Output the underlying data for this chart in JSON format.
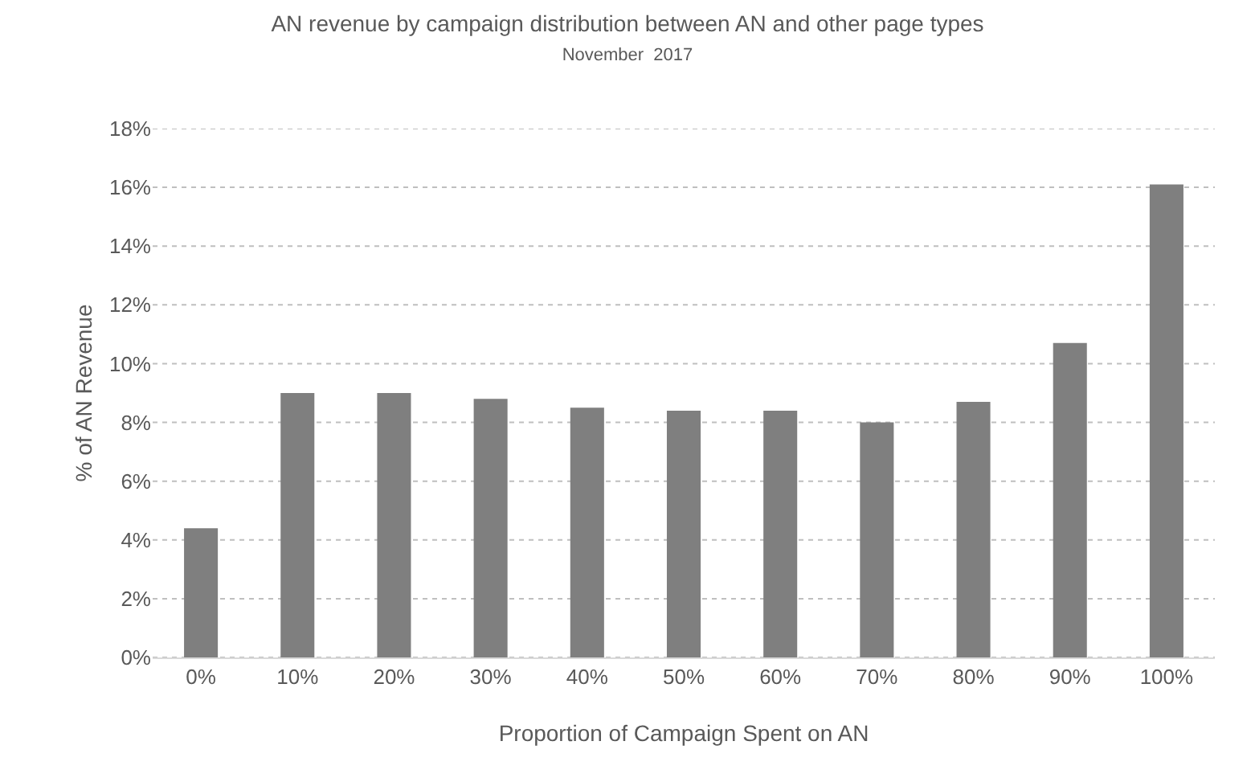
{
  "chart_data": {
    "type": "bar",
    "title": "AN revenue by campaign distribution between AN and other page types",
    "subtitle": "November  2017",
    "xlabel": "Proportion of Campaign Spent on AN",
    "ylabel": "% of AN Revenue",
    "categories": [
      "0%",
      "10%",
      "20%",
      "30%",
      "40%",
      "50%",
      "60%",
      "70%",
      "80%",
      "90%",
      "100%"
    ],
    "values": [
      4.4,
      9.0,
      9.0,
      8.8,
      8.5,
      8.4,
      8.4,
      8.0,
      8.7,
      10.7,
      16.1
    ],
    "color": "#7f7f7f",
    "ylim": [
      0,
      18
    ],
    "yticks": [
      {
        "value": 0,
        "label": "0%"
      },
      {
        "value": 2,
        "label": "2%"
      },
      {
        "value": 4,
        "label": "4%"
      },
      {
        "value": 6,
        "label": "6%"
      },
      {
        "value": 8,
        "label": "8%"
      },
      {
        "value": 10,
        "label": "10%"
      },
      {
        "value": 12,
        "label": "12%"
      },
      {
        "value": 14,
        "label": "14%"
      },
      {
        "value": 16,
        "label": "16%"
      },
      {
        "value": 18,
        "label": "18%"
      }
    ],
    "grid": "y"
  }
}
